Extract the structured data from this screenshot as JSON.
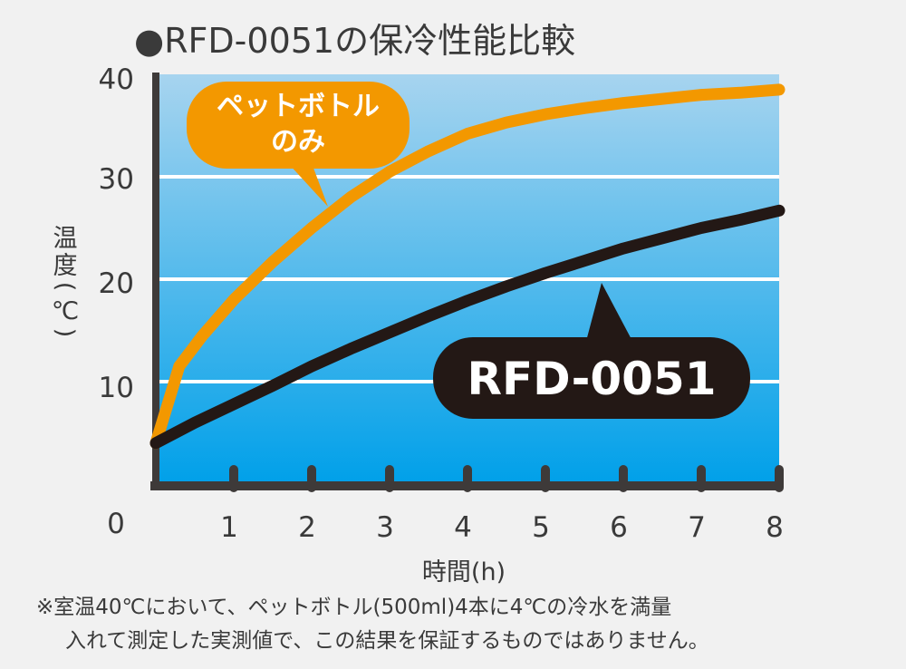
{
  "chart_data": {
    "type": "line",
    "title": "●RFD-0051の保冷性能比較",
    "xlabel": "時間(h)",
    "ylabel": "温度(℃)",
    "ylabel_chars": [
      "温",
      "度",
      "(",
      "℃",
      ")"
    ],
    "x_ticks": [
      "1",
      "2",
      "3",
      "4",
      "5",
      "6",
      "7",
      "8"
    ],
    "y_ticks": [
      "10",
      "20",
      "30",
      "40"
    ],
    "origin_label": "0",
    "xlim": [
      0,
      8
    ],
    "ylim": [
      0,
      40
    ],
    "series": [
      {
        "name": "ペットボトルのみ",
        "color": "#f39800",
        "x": [
          0,
          0.1,
          0.3,
          0.6,
          1.0,
          1.5,
          2.0,
          2.5,
          3.0,
          3.5,
          4.0,
          4.5,
          5.0,
          5.5,
          6.0,
          6.5,
          7.0,
          7.5,
          8.0
        ],
        "y": [
          4,
          6.5,
          11.5,
          14.5,
          18,
          21.7,
          25,
          28,
          30.5,
          32.5,
          34.2,
          35.3,
          36.1,
          36.7,
          37.2,
          37.6,
          38,
          38.2,
          38.5
        ]
      },
      {
        "name": "RFD-0051",
        "color": "#231815",
        "x": [
          0,
          0.5,
          1,
          1.5,
          2,
          2.5,
          3,
          3.5,
          4,
          4.5,
          5,
          5.5,
          6,
          6.5,
          7,
          7.5,
          8
        ],
        "y": [
          4,
          6,
          7.8,
          9.6,
          11.5,
          13.2,
          14.8,
          16.4,
          17.9,
          19.3,
          20.6,
          21.8,
          23,
          24,
          25,
          25.8,
          26.7
        ]
      }
    ],
    "callouts": {
      "orange_lines": [
        "ペットボトル",
        "のみ"
      ],
      "black": "RFD-0051"
    },
    "grid": true,
    "colors": {
      "background_top": "#a7d4ef",
      "background_bottom": "#00a0e9",
      "axis": "#3e3a39",
      "grid": "#ffffff"
    }
  },
  "footnote": {
    "line1": "※室温40℃において、ペットボトル(500ml)4本に4℃の冷水を満量",
    "line2": "入れて測定した実測値で、この結果を保証するものではありません。"
  }
}
